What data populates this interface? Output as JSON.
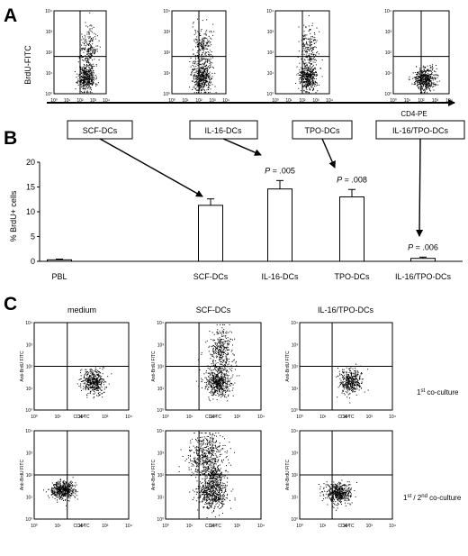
{
  "panel_a": {
    "letter": "A",
    "y_axis_label": "BrdU-FITC",
    "x_axis_label": "CD4-PE",
    "tick_labels": [
      "10⁰",
      "10¹",
      "10²",
      "10³",
      "10⁴"
    ]
  },
  "panel_b": {
    "letter": "B",
    "boxes": [
      "SCF-DCs",
      "IL-16-DCs",
      "TPO-DCs",
      "IL-16/TPO-DCs"
    ]
  },
  "panel_c": {
    "letter": "C",
    "col_titles": [
      "medium",
      "SCF-DCs",
      "IL-16/TPO-DCs"
    ],
    "row_labels": [
      {
        "pre": "1",
        "sup": "st",
        "post": " co-culture"
      },
      {
        "pre": "1",
        "sup": "st",
        "mid": " / 2",
        "sup2": "nd",
        "post": " co-culture"
      }
    ],
    "y_axis_label": "Anti-BrdU FITC",
    "x_axis_label": "CD4 TC",
    "tick_labels": [
      "10⁰",
      "10¹",
      "10²",
      "10³",
      "10⁴"
    ]
  },
  "chart_data": {
    "type": "bar",
    "categories": [
      "PBL",
      "SCF-DCs",
      "IL-16-DCs",
      "TPO-DCs",
      "IL-16/TPO-DCs"
    ],
    "values": [
      0.3,
      11.3,
      14.6,
      13.0,
      0.6
    ],
    "errors": [
      0.15,
      1.3,
      1.7,
      1.5,
      0.25
    ],
    "annotations": [
      "",
      "",
      "P = .005",
      "P = .008",
      "P = .006"
    ],
    "ylabel": "% BrdU+ cells",
    "ylim": [
      0,
      20
    ],
    "yticks": [
      0,
      5,
      10,
      15,
      20
    ]
  }
}
